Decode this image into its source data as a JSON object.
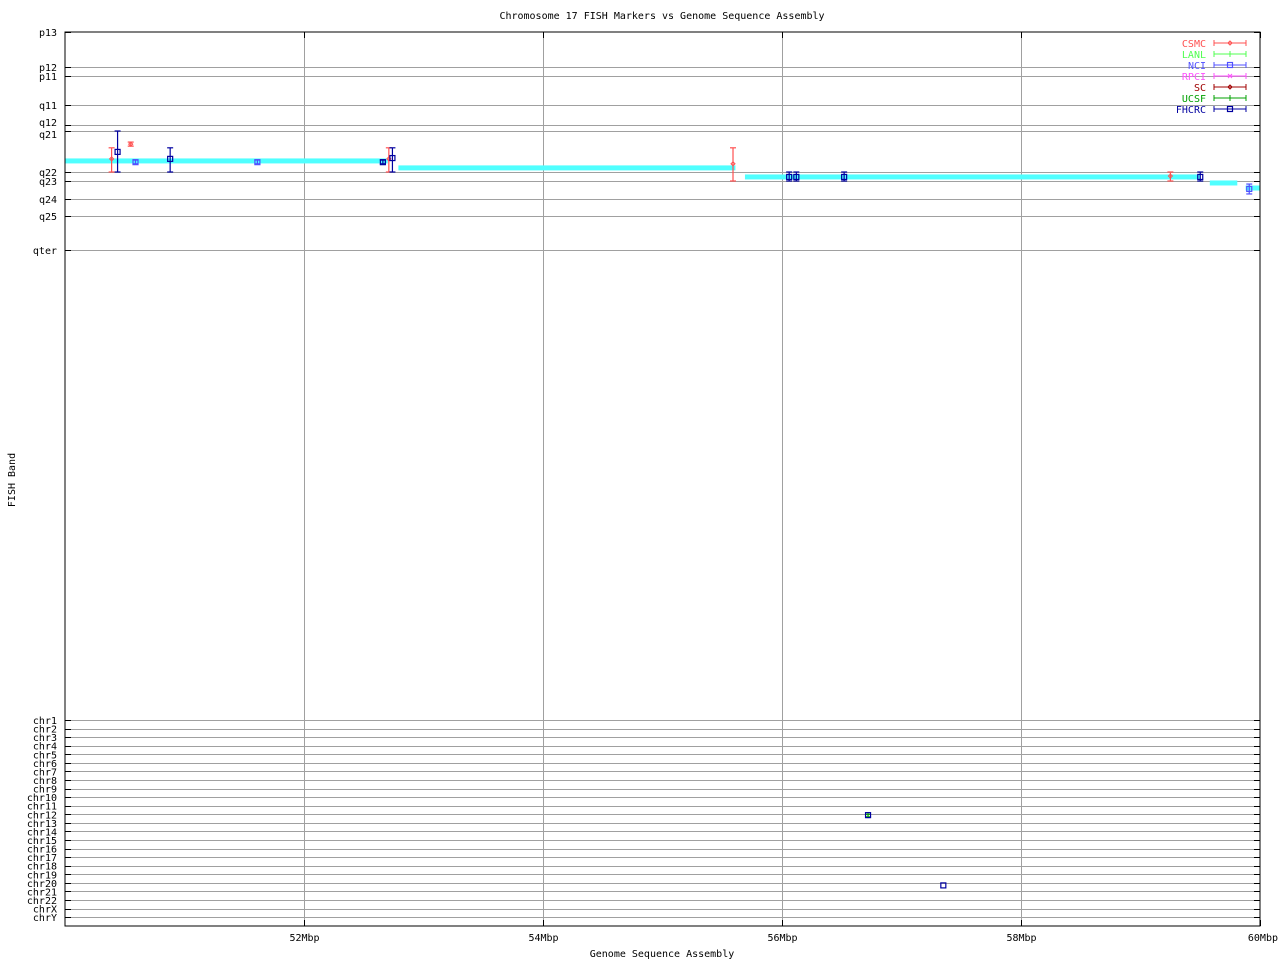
{
  "chart_data": {
    "type": "scatter",
    "title": "Chromosome 17 FISH Markers vs Genome Sequence Assembly",
    "xlabel": "Genome Sequence Assembly",
    "ylabel": "FISH Band",
    "xlim": [
      50,
      60
    ],
    "x_unit": "Mbp",
    "x_ticks": [
      {
        "value": 52,
        "label": "52Mbp"
      },
      {
        "value": 54,
        "label": "54Mbp"
      },
      {
        "value": 56,
        "label": "56Mbp"
      },
      {
        "value": 58,
        "label": "58Mbp"
      },
      {
        "value": 60,
        "label": "60Mbp"
      }
    ],
    "y_ticks": [
      "p13",
      "p12",
      "p11",
      "q11",
      "q12",
      "q21",
      "q22",
      "q23",
      "q24",
      "q25",
      "qter",
      "chr1",
      "chr2",
      "chr3",
      "chr4",
      "chr5",
      "chr6",
      "chr7",
      "chr8",
      "chr9",
      "chr10",
      "chr11",
      "chr12",
      "chr13",
      "chr14",
      "chr15",
      "chr16",
      "chr17",
      "chr18",
      "chr19",
      "chr20",
      "chr21",
      "chr22",
      "chrX",
      "chrY"
    ],
    "y_value_format": "[band, fraction of the way to next band]",
    "grid": true,
    "legend_position": "top-right",
    "series": [
      {
        "name": "CSMC",
        "color": "#ff5050",
        "marker": "diamond",
        "points": [
          {
            "x": 50.39,
            "y": [
              "q21",
              0.68
            ],
            "ylo": [
              "q21",
              0.41
            ],
            "yhi": [
              "q22",
              0
            ]
          },
          {
            "x": 50.55,
            "y": [
              "q21",
              0.32
            ],
            "ylo": [
              "q21",
              0.27
            ],
            "yhi": [
              "q21",
              0.37
            ]
          },
          {
            "x": 52.71,
            "y": [
              "q21",
              0.68
            ],
            "ylo": [
              "q21",
              0.41
            ],
            "yhi": [
              "q22",
              0
            ]
          },
          {
            "x": 55.59,
            "y": [
              "q21",
              0.8
            ],
            "ylo": [
              "q21",
              0.41
            ],
            "yhi": [
              "q23",
              0
            ]
          },
          {
            "x": 59.25,
            "y": [
              "q22",
              0.45
            ],
            "ylo": [
              "q22",
              0
            ],
            "yhi": [
              "q23",
              0
            ]
          }
        ]
      },
      {
        "name": "LANL",
        "color": "#50ff50",
        "marker": "tick",
        "points": []
      },
      {
        "name": "NCI",
        "color": "#5050ff",
        "marker": "box",
        "points": [
          {
            "x": 50.59,
            "y": [
              "q21",
              0.76
            ],
            "ylo": [
              "q21",
              0.71
            ],
            "yhi": [
              "q21",
              0.8
            ]
          },
          {
            "x": 51.61,
            "y": [
              "q21",
              0.76
            ],
            "ylo": [
              "q21",
              0.71
            ],
            "yhi": [
              "q21",
              0.8
            ]
          },
          {
            "x": 59.91,
            "y": [
              "q23",
              0.44
            ],
            "ylo": [
              "q23",
              0.17
            ],
            "yhi": [
              "q23",
              0.72
            ]
          }
        ]
      },
      {
        "name": "RPCI",
        "color": "#ff50ff",
        "marker": "cross",
        "points": []
      },
      {
        "name": "SC",
        "color": "#a00000",
        "marker": "diamond",
        "points": []
      },
      {
        "name": "UCSF",
        "color": "#00a000",
        "marker": "tick",
        "points": [
          {
            "x": 56.72,
            "y": [
              "chr12",
              0.1
            ],
            "ylo": [
              "chr12",
              0.0
            ],
            "yhi": [
              "chr12",
              0.3
            ]
          }
        ]
      },
      {
        "name": "FHCRC",
        "color": "#0000a0",
        "marker": "box",
        "points": [
          {
            "x": 50.44,
            "y": [
              "q21",
              0.51
            ],
            "ylo": [
              "q21",
              0
            ],
            "yhi": [
              "q22",
              0
            ]
          },
          {
            "x": 50.88,
            "y": [
              "q21",
              0.68
            ],
            "ylo": [
              "q21",
              0.41
            ],
            "yhi": [
              "q22",
              0
            ]
          },
          {
            "x": 52.66,
            "y": [
              "q21",
              0.76
            ],
            "ylo": [
              "q21",
              0.71
            ],
            "yhi": [
              "q21",
              0.8
            ]
          },
          {
            "x": 52.74,
            "y": [
              "q21",
              0.66
            ],
            "ylo": [
              "q21",
              0.41
            ],
            "yhi": [
              "q22",
              0
            ]
          },
          {
            "x": 56.06,
            "y": [
              "q22",
              0.55
            ],
            "ylo": [
              "q22",
              0
            ],
            "yhi": [
              "q23",
              0
            ]
          },
          {
            "x": 56.12,
            "y": [
              "q22",
              0.55
            ],
            "ylo": [
              "q22",
              0
            ],
            "yhi": [
              "q23",
              0
            ]
          },
          {
            "x": 56.52,
            "y": [
              "q22",
              0.55
            ],
            "ylo": [
              "q22",
              0
            ],
            "yhi": [
              "q23",
              0
            ]
          },
          {
            "x": 59.5,
            "y": [
              "q22",
              0.55
            ],
            "ylo": [
              "q22",
              0
            ],
            "yhi": [
              "q23",
              0
            ]
          },
          {
            "x": 56.72,
            "y": [
              "chr12",
              0.1
            ]
          },
          {
            "x": 57.35,
            "y": [
              "chr20",
              0.3
            ]
          }
        ]
      }
    ],
    "assembly_segments": {
      "color": "#50ffff",
      "segments": [
        {
          "x0": 50.0,
          "x1": 52.7,
          "y": [
            "q21",
            0.73
          ]
        },
        {
          "x0": 52.79,
          "x1": 55.61,
          "y": [
            "q21",
            0.9
          ]
        },
        {
          "x0": 55.69,
          "x1": 59.5,
          "y": [
            "q22",
            0.55
          ]
        },
        {
          "x0": 59.58,
          "x1": 59.81,
          "y": [
            "q23",
            0.11
          ]
        },
        {
          "x0": 59.88,
          "x1": 60.0,
          "y": [
            "q23",
            0.39
          ]
        }
      ]
    }
  }
}
